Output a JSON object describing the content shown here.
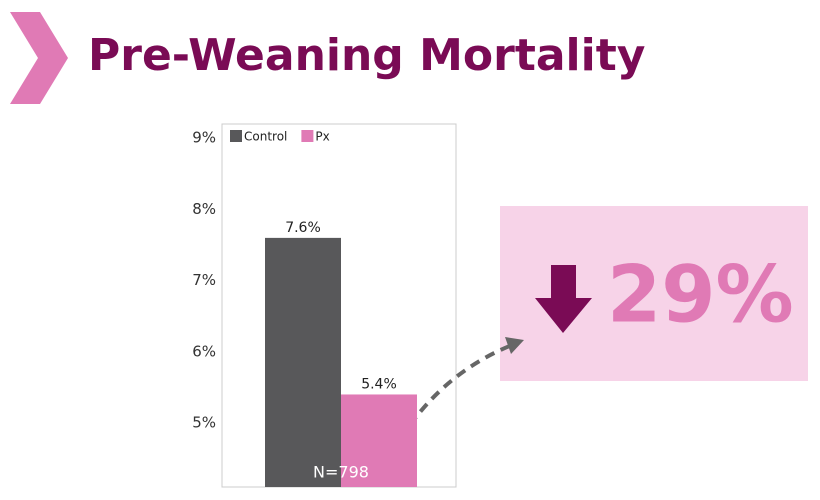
{
  "title": "Pre-Weaning Mortality",
  "chart_data": {
    "type": "bar",
    "categories": [
      null
    ],
    "series": [
      {
        "name": "Control",
        "color": "#58585a",
        "values": [
          7.6
        ],
        "value_labels": [
          "7.6%"
        ]
      },
      {
        "name": "Px",
        "color": "#e07ab5",
        "values": [
          5.4
        ],
        "value_labels": [
          "5.4%"
        ]
      }
    ],
    "ylim": [
      4.1,
      9.2
    ],
    "yticks": [
      {
        "value": 5,
        "label": "5%"
      },
      {
        "value": 6,
        "label": "6%"
      },
      {
        "value": 7,
        "label": "7%"
      },
      {
        "value": 8,
        "label": "8%"
      },
      {
        "value": 9,
        "label": "9%"
      }
    ],
    "grid": false,
    "legend": "top-left",
    "annotations": [
      "N=798"
    ]
  },
  "callout": "29%"
}
